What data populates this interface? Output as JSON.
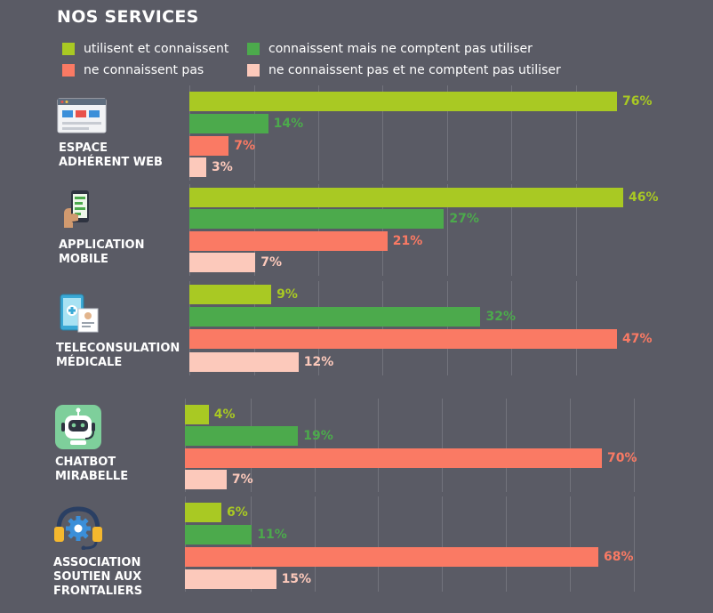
{
  "chart_data": {
    "type": "bar",
    "orientation": "horizontal",
    "title": "NOS SERVICES",
    "legend_position": "top",
    "series": [
      {
        "name": "utilisent et connaissent",
        "color": "#a9c923"
      },
      {
        "name": "connaissent mais ne comptent pas utiliser",
        "color": "#4caa4c"
      },
      {
        "name": "ne connaissent pas",
        "color": "#fa7a64"
      },
      {
        "name": "ne connaissent pas et ne comptent pas utiliser",
        "color": "#fcc9bb"
      }
    ],
    "groups": [
      {
        "label": "ESPACE\nADHÉRENT WEB",
        "icon": "web-page-icon",
        "values": [
          76,
          14,
          7,
          3
        ],
        "labels": [
          "76%",
          "14%",
          "7%",
          "3%"
        ]
      },
      {
        "label": "APPLICATION\nMOBILE",
        "icon": "smartphone-icon",
        "values": [
          46,
          27,
          21,
          7
        ],
        "labels": [
          "46%",
          "27%",
          "21%",
          "7%"
        ]
      },
      {
        "label": "TELECONSULATION\nMÉDICALE",
        "icon": "tablet-medical-icon",
        "values": [
          9,
          32,
          47,
          12
        ],
        "labels": [
          "9%",
          "32%",
          "47%",
          "12%"
        ]
      },
      {
        "label": "CHATBOT\nMIRABELLE",
        "icon": "chatbot-robot-icon",
        "values": [
          4,
          19,
          70,
          7
        ],
        "labels": [
          "4%",
          "19%",
          "70%",
          "7%"
        ]
      },
      {
        "label": "ASSOCIATION\nSOUTIEN AUX\nFRONTALIERS",
        "icon": "headset-gear-icon",
        "values": [
          6,
          11,
          68,
          15
        ],
        "labels": [
          "6%",
          "11%",
          "68%",
          "15%"
        ]
      }
    ],
    "note": "Each group's bars are scaled independently (longest bar fills the panel width)."
  }
}
